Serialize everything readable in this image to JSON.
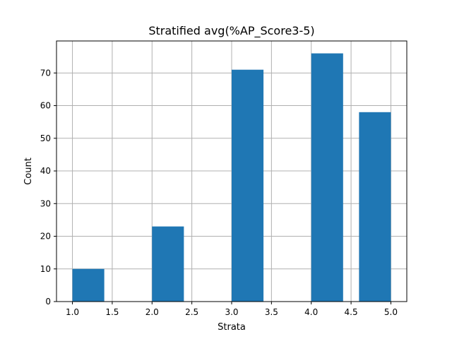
{
  "chart_data": {
    "type": "bar",
    "title": "Stratified avg(%AP_Score3-5)",
    "xlabel": "Strata",
    "ylabel": "Count",
    "xlim": [
      0.8,
      5.2
    ],
    "ylim": [
      0,
      79.8
    ],
    "grid": true,
    "bars": [
      {
        "x_start": 1.0,
        "x_end": 1.4,
        "value": 10
      },
      {
        "x_start": 2.0,
        "x_end": 2.4,
        "value": 23
      },
      {
        "x_start": 2.4,
        "x_end": 2.8,
        "value": 0
      },
      {
        "x_start": 3.0,
        "x_end": 3.4,
        "value": 71
      },
      {
        "x_start": 4.0,
        "x_end": 4.4,
        "value": 76
      },
      {
        "x_start": 4.6,
        "x_end": 5.0,
        "value": 58
      }
    ],
    "xticks": [
      1.0,
      1.5,
      2.0,
      2.5,
      3.0,
      3.5,
      4.0,
      4.5,
      5.0
    ],
    "xtick_labels": [
      "1.0",
      "1.5",
      "2.0",
      "2.5",
      "3.0",
      "3.5",
      "4.0",
      "4.5",
      "5.0"
    ],
    "yticks": [
      0,
      10,
      20,
      30,
      40,
      50,
      60,
      70
    ],
    "ytick_labels": [
      "0",
      "10",
      "20",
      "30",
      "40",
      "50",
      "60",
      "70"
    ],
    "bar_color": "#1f77b4",
    "grid_color": "#b0b0b0"
  }
}
